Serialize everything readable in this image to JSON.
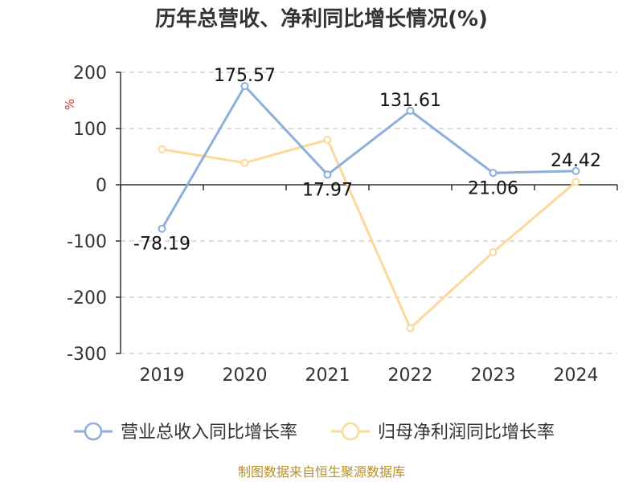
{
  "chart_data": {
    "type": "line",
    "title": "历年总营收、净利同比增长情况(%)",
    "ylabel": "%",
    "categories": [
      "2019",
      "2020",
      "2021",
      "2022",
      "2023",
      "2024"
    ],
    "ylim": [
      -300,
      200
    ],
    "yticks": [
      200,
      100,
      0,
      -100,
      -200,
      -300
    ],
    "grid": true,
    "legend_position": "bottom",
    "series": [
      {
        "name": "营业总收入同比增长率",
        "color": "#8eaedb",
        "values": [
          -78.19,
          175.57,
          17.97,
          131.61,
          21.06,
          24.42
        ],
        "labels": [
          "-78.19",
          "175.57",
          "17.97",
          "131.61",
          "21.06",
          "24.42"
        ]
      },
      {
        "name": "归母净利润同比增长率",
        "color": "#fad99a",
        "values": [
          63,
          39,
          80,
          -255,
          -120,
          5
        ]
      }
    ]
  },
  "source_text": "制图数据来自恒生聚源数据库"
}
